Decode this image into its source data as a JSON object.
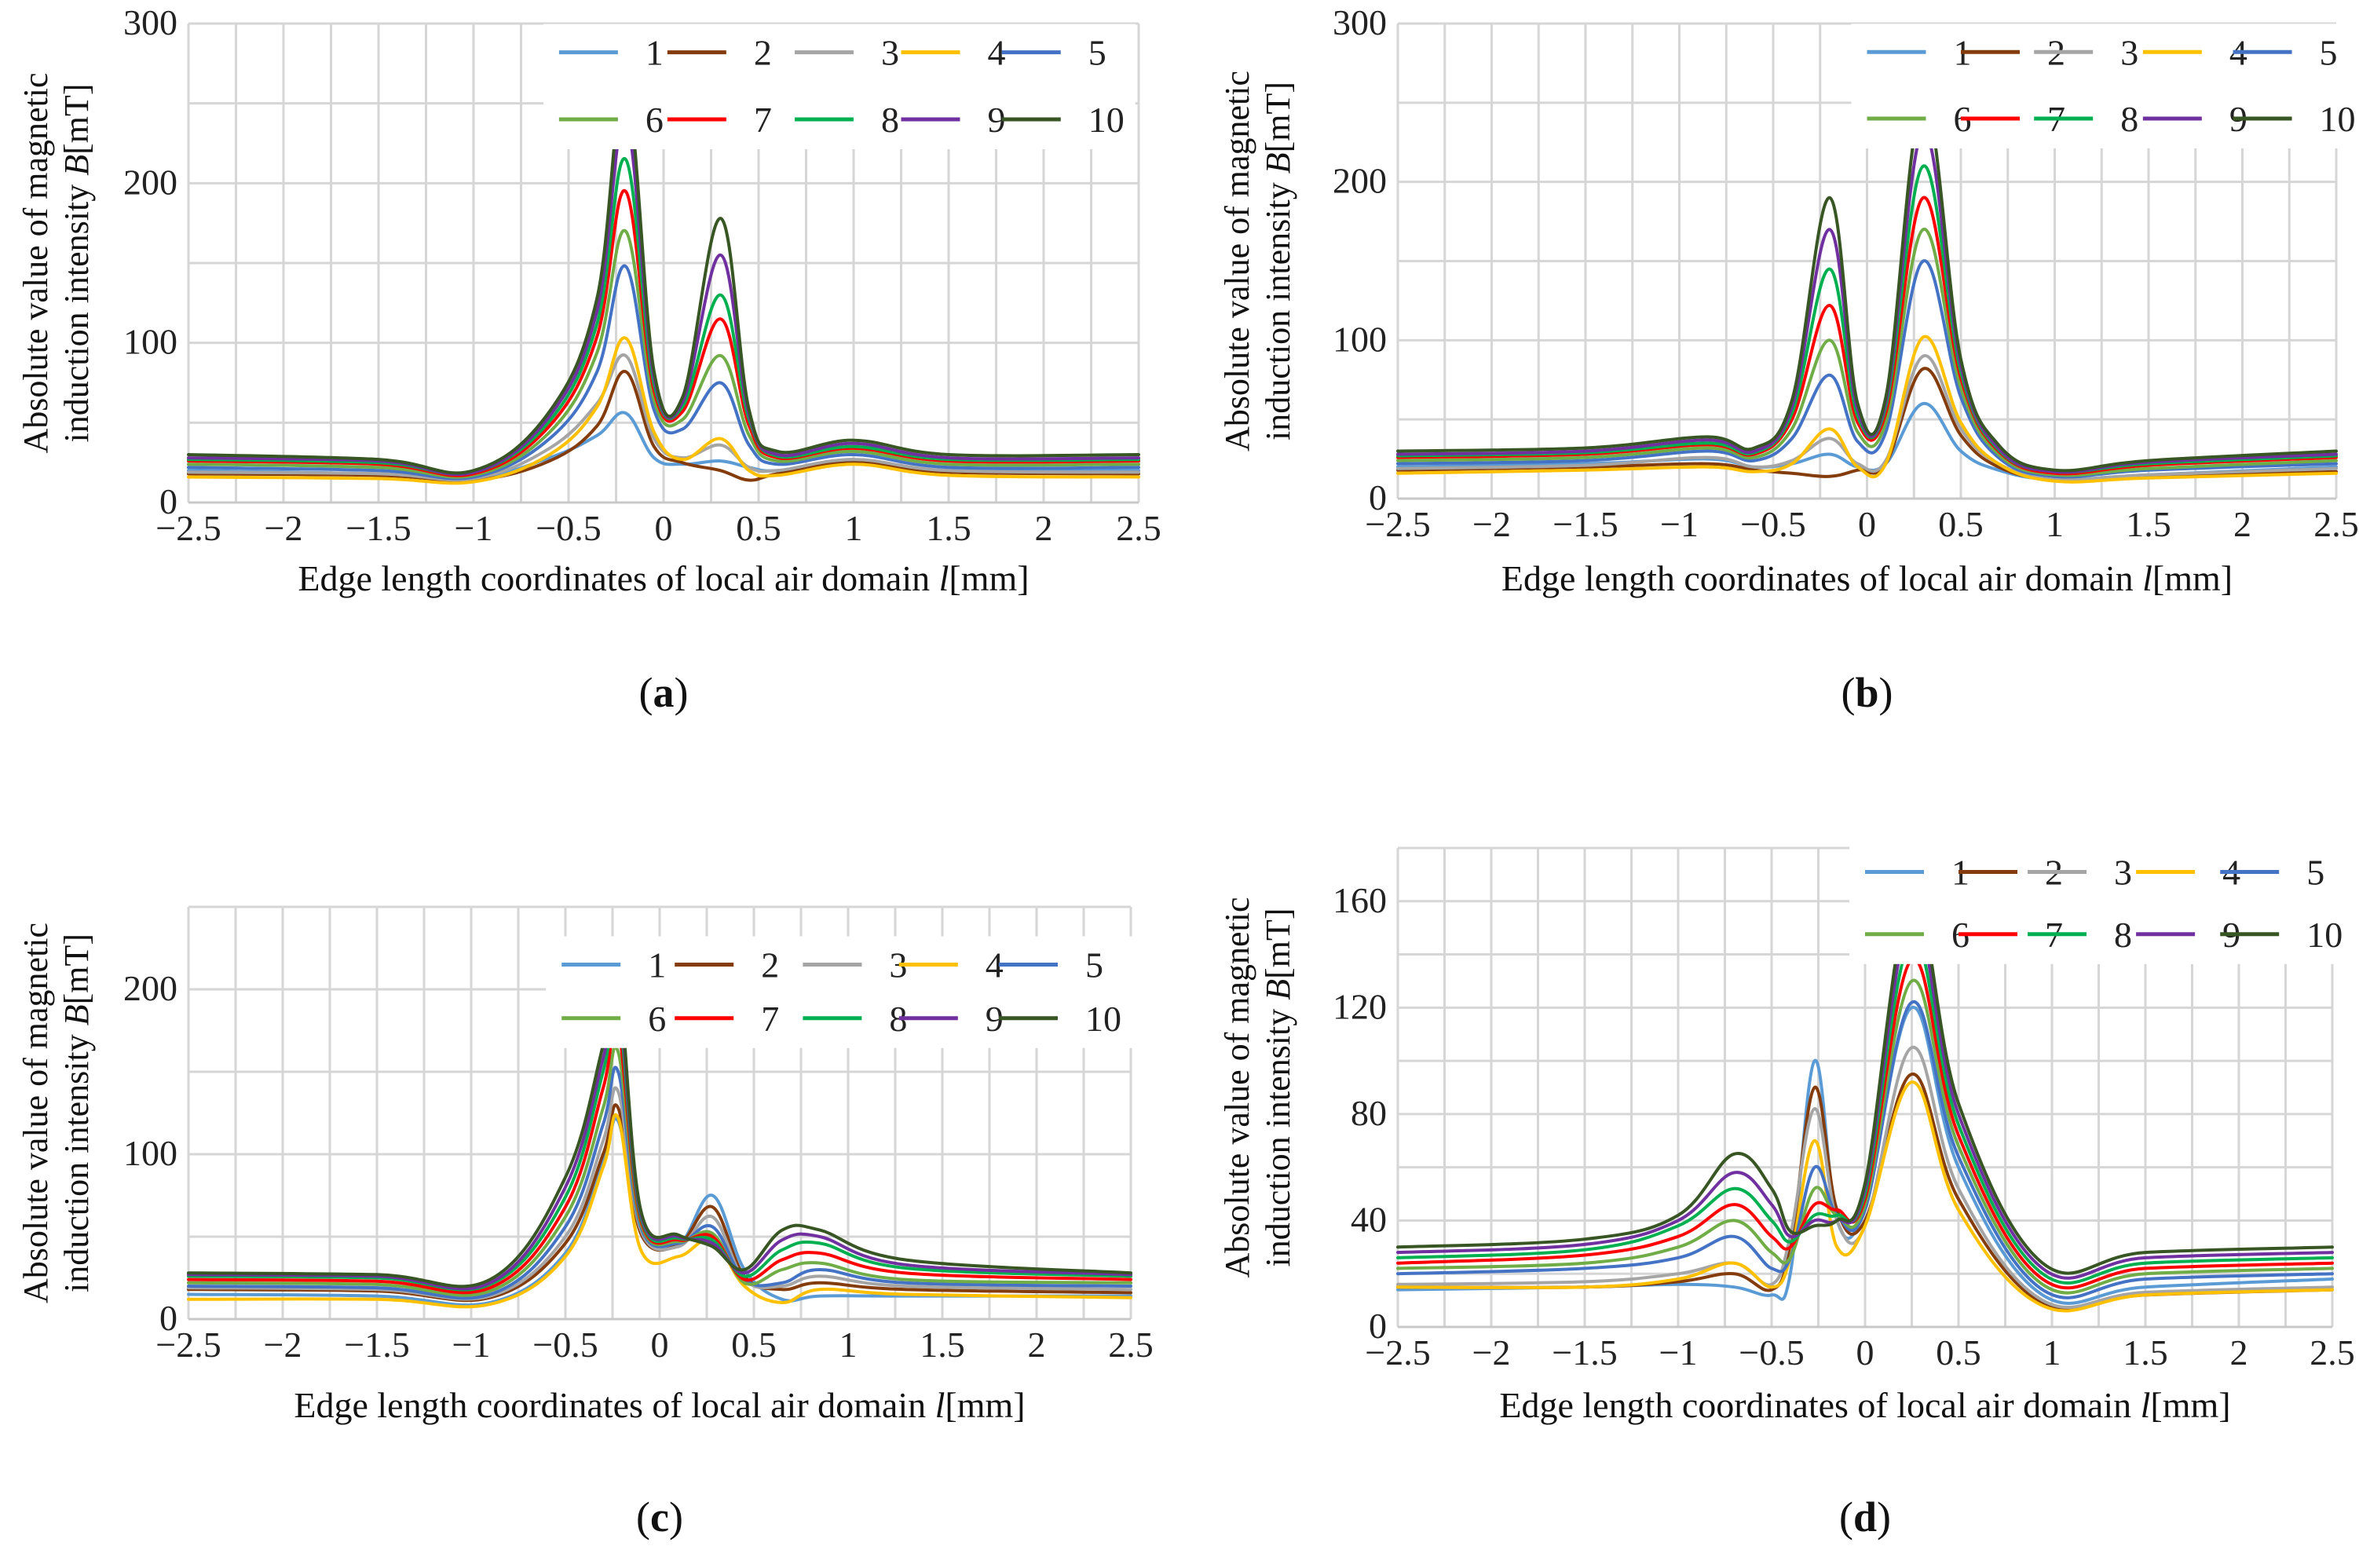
{
  "colors": {
    "1": "#5b9bd5",
    "2": "#843c0c",
    "3": "#a5a5a5",
    "4": "#ffc000",
    "5": "#4472c4",
    "6": "#70ad47",
    "7": "#ff0000",
    "8": "#00b050",
    "9": "#7030a0",
    "10": "#375623"
  },
  "chart_data": [
    {
      "panel": "a",
      "type": "line",
      "xlabel": "Edge length coordinates of local air domain l[mm]",
      "ylabel_line1": "Absolute value of magnetic",
      "ylabel_line2": "induction intensity B[mT]",
      "xlim": [
        -2.5,
        2.5
      ],
      "ylim": [
        0,
        300
      ],
      "xticks": [
        -2.5,
        -2,
        -1.5,
        -1,
        -0.5,
        0,
        0.5,
        1,
        1.5,
        2,
        2.5
      ],
      "yticks": [
        0,
        100,
        200,
        300
      ],
      "legend": [
        "1",
        "2",
        "3",
        "4",
        "5",
        "6",
        "7",
        "8",
        "9",
        "10"
      ],
      "x": [
        -2.5,
        -1.5,
        -1.0,
        -0.6,
        -0.35,
        -0.2,
        -0.05,
        0.1,
        0.3,
        0.45,
        0.6,
        1.0,
        1.5,
        2.5
      ],
      "series": [
        {
          "name": "1",
          "values": [
            20,
            18,
            15,
            28,
            42,
            56,
            28,
            24,
            26,
            22,
            20,
            26,
            20,
            20
          ]
        },
        {
          "name": "2",
          "values": [
            18,
            17,
            14,
            26,
            48,
            82,
            35,
            25,
            20,
            14,
            18,
            25,
            19,
            18
          ]
        },
        {
          "name": "3",
          "values": [
            19,
            18,
            15,
            34,
            62,
            92,
            40,
            28,
            36,
            22,
            20,
            27,
            20,
            19
          ]
        },
        {
          "name": "4",
          "values": [
            16,
            15,
            13,
            30,
            60,
            103,
            44,
            27,
            40,
            20,
            17,
            24,
            17,
            16
          ]
        },
        {
          "name": "5",
          "values": [
            22,
            20,
            16,
            40,
            82,
            148,
            58,
            46,
            75,
            36,
            24,
            30,
            22,
            22
          ]
        },
        {
          "name": "6",
          "values": [
            24,
            22,
            17,
            44,
            94,
            170,
            64,
            52,
            92,
            42,
            26,
            32,
            24,
            24
          ]
        },
        {
          "name": "7",
          "values": [
            26,
            24,
            18,
            48,
            104,
            195,
            70,
            57,
            115,
            48,
            28,
            34,
            26,
            26
          ]
        },
        {
          "name": "8",
          "values": [
            27,
            25,
            19,
            51,
            112,
            215,
            74,
            60,
            130,
            52,
            29,
            35,
            27,
            27
          ]
        },
        {
          "name": "9",
          "values": [
            28,
            26,
            19,
            54,
            120,
            240,
            78,
            63,
            155,
            55,
            30,
            37,
            28,
            28
          ]
        },
        {
          "name": "10",
          "values": [
            30,
            27,
            20,
            57,
            128,
            262,
            82,
            66,
            178,
            58,
            32,
            39,
            30,
            30
          ]
        }
      ]
    },
    {
      "panel": "b",
      "type": "line",
      "xlabel": "Edge length coordinates of local air domain l[mm]",
      "ylabel_line1": "Absolute value of magnetic",
      "ylabel_line2": "induction intensity B[mT]",
      "xlim": [
        -2.5,
        2.5
      ],
      "ylim": [
        0,
        300
      ],
      "xticks": [
        -2.5,
        -2,
        -1.5,
        -1,
        -0.5,
        0,
        0.5,
        1,
        1.5,
        2,
        2.5
      ],
      "yticks": [
        0,
        100,
        200,
        300
      ],
      "legend": [
        "1",
        "2",
        "3",
        "4",
        "5",
        "6",
        "7",
        "8",
        "9",
        "10"
      ],
      "x": [
        -2.5,
        -1.5,
        -0.85,
        -0.6,
        -0.4,
        -0.2,
        -0.05,
        0.1,
        0.3,
        0.5,
        0.7,
        1.0,
        1.5,
        2.5
      ],
      "series": [
        {
          "name": "1",
          "values": [
            20,
            22,
            25,
            20,
            22,
            28,
            20,
            22,
            60,
            30,
            18,
            12,
            15,
            20
          ]
        },
        {
          "name": "2",
          "values": [
            18,
            20,
            22,
            18,
            16,
            14,
            18,
            22,
            82,
            40,
            20,
            12,
            14,
            17
          ]
        },
        {
          "name": "3",
          "values": [
            19,
            21,
            26,
            20,
            24,
            38,
            22,
            24,
            90,
            44,
            22,
            12,
            15,
            19
          ]
        },
        {
          "name": "4",
          "values": [
            16,
            18,
            20,
            17,
            22,
            44,
            20,
            22,
            102,
            48,
            22,
            11,
            13,
            16
          ]
        },
        {
          "name": "5",
          "values": [
            22,
            24,
            30,
            24,
            38,
            78,
            36,
            42,
            150,
            64,
            26,
            14,
            18,
            22
          ]
        },
        {
          "name": "6",
          "values": [
            24,
            26,
            32,
            26,
            44,
            100,
            42,
            48,
            170,
            70,
            28,
            15,
            19,
            24
          ]
        },
        {
          "name": "7",
          "values": [
            26,
            28,
            34,
            28,
            50,
            122,
            48,
            54,
            190,
            76,
            30,
            16,
            21,
            26
          ]
        },
        {
          "name": "8",
          "values": [
            27,
            29,
            35,
            29,
            54,
            145,
            52,
            58,
            210,
            80,
            31,
            17,
            22,
            27
          ]
        },
        {
          "name": "9",
          "values": [
            28,
            30,
            37,
            30,
            58,
            170,
            56,
            61,
            232,
            84,
            32,
            17,
            23,
            28
          ]
        },
        {
          "name": "10",
          "values": [
            30,
            32,
            39,
            32,
            62,
            190,
            60,
            64,
            252,
            88,
            34,
            18,
            24,
            30
          ]
        }
      ]
    },
    {
      "panel": "c",
      "type": "line",
      "xlabel": "Edge length coordinates of local air domain l[mm]",
      "ylabel_line1": "Absolute value of magnetic",
      "ylabel_line2": "induction intensity B[mT]",
      "xlim": [
        -2.5,
        2.5
      ],
      "ylim": [
        0,
        250
      ],
      "xticks": [
        -2.5,
        -2,
        -1.5,
        -1,
        -0.5,
        0,
        0.5,
        1,
        1.5,
        2,
        2.5
      ],
      "yticks": [
        0,
        100,
        200
      ],
      "legend": [
        "1",
        "2",
        "3",
        "4",
        "5",
        "6",
        "7",
        "8",
        "9",
        "10"
      ],
      "x": [
        -2.5,
        -1.5,
        -0.9,
        -0.5,
        -0.3,
        -0.22,
        -0.1,
        0.1,
        0.28,
        0.45,
        0.65,
        0.85,
        1.3,
        2.5
      ],
      "series": [
        {
          "name": "1",
          "values": [
            15,
            14,
            10,
            40,
            95,
            120,
            55,
            45,
            75,
            30,
            12,
            14,
            14,
            14
          ]
        },
        {
          "name": "2",
          "values": [
            18,
            17,
            13,
            46,
            100,
            128,
            52,
            45,
            68,
            26,
            18,
            22,
            18,
            16
          ]
        },
        {
          "name": "3",
          "values": [
            19,
            18,
            14,
            50,
            108,
            138,
            54,
            44,
            62,
            24,
            20,
            26,
            20,
            18
          ]
        },
        {
          "name": "4",
          "values": [
            12,
            12,
            9,
            38,
            92,
            122,
            42,
            38,
            48,
            20,
            10,
            18,
            15,
            13
          ]
        },
        {
          "name": "5",
          "values": [
            20,
            19,
            15,
            56,
            118,
            150,
            56,
            46,
            56,
            24,
            22,
            30,
            22,
            20
          ]
        },
        {
          "name": "6",
          "values": [
            22,
            21,
            17,
            62,
            128,
            162,
            58,
            47,
            52,
            22,
            30,
            34,
            24,
            22
          ]
        },
        {
          "name": "7",
          "values": [
            24,
            23,
            19,
            68,
            140,
            176,
            60,
            48,
            50,
            24,
            36,
            40,
            28,
            24
          ]
        },
        {
          "name": "8",
          "values": [
            26,
            25,
            21,
            74,
            150,
            188,
            62,
            49,
            48,
            26,
            42,
            46,
            31,
            26
          ]
        },
        {
          "name": "9",
          "values": [
            27,
            26,
            22,
            80,
            158,
            197,
            64,
            50,
            46,
            28,
            48,
            50,
            33,
            27
          ]
        },
        {
          "name": "10",
          "values": [
            28,
            27,
            24,
            86,
            166,
            206,
            66,
            51,
            44,
            30,
            54,
            54,
            36,
            28
          ]
        }
      ]
    },
    {
      "panel": "d",
      "type": "line",
      "xlabel": "Edge length coordinates of local air domain l[mm]",
      "ylabel_line1": "Absolute value of magnetic",
      "ylabel_line2": "induction intensity B[mT]",
      "xlim": [
        -2.5,
        2.5
      ],
      "ylim": [
        0,
        180
      ],
      "xticks": [
        -2.5,
        -2,
        -1.5,
        -1,
        -0.5,
        0,
        0.5,
        1,
        1.5,
        2,
        2.5
      ],
      "yticks": [
        0,
        40,
        80,
        120,
        160
      ],
      "legend": [
        "1",
        "2",
        "3",
        "4",
        "5",
        "6",
        "7",
        "8",
        "9",
        "10"
      ],
      "x": [
        -2.5,
        -1.5,
        -1.0,
        -0.7,
        -0.5,
        -0.4,
        -0.27,
        -0.15,
        0.0,
        0.25,
        0.5,
        0.95,
        1.5,
        2.5
      ],
      "series": [
        {
          "name": "1",
          "values": [
            14,
            15,
            16,
            15,
            12,
            20,
            100,
            40,
            45,
            120,
            60,
            12,
            15,
            18
          ]
        },
        {
          "name": "2",
          "values": [
            15,
            15,
            17,
            20,
            14,
            30,
            90,
            44,
            40,
            95,
            48,
            9,
            12,
            14
          ]
        },
        {
          "name": "3",
          "values": [
            16,
            17,
            20,
            24,
            16,
            34,
            82,
            40,
            38,
            105,
            52,
            10,
            13,
            15
          ]
        },
        {
          "name": "4",
          "values": [
            15,
            15,
            18,
            24,
            15,
            26,
            70,
            30,
            38,
            92,
            44,
            8,
            12,
            14
          ]
        },
        {
          "name": "5",
          "values": [
            20,
            22,
            26,
            34,
            22,
            26,
            60,
            42,
            44,
            122,
            64,
            14,
            18,
            20
          ]
        },
        {
          "name": "6",
          "values": [
            22,
            24,
            30,
            40,
            28,
            26,
            52,
            42,
            46,
            130,
            68,
            16,
            20,
            22
          ]
        },
        {
          "name": "7",
          "values": [
            24,
            27,
            34,
            46,
            34,
            30,
            46,
            44,
            48,
            138,
            72,
            18,
            22,
            24
          ]
        },
        {
          "name": "8",
          "values": [
            26,
            29,
            38,
            52,
            40,
            32,
            42,
            42,
            50,
            146,
            76,
            20,
            24,
            26
          ]
        },
        {
          "name": "9",
          "values": [
            28,
            31,
            40,
            58,
            46,
            34,
            40,
            40,
            52,
            154,
            80,
            22,
            26,
            28
          ]
        },
        {
          "name": "10",
          "values": [
            30,
            33,
            42,
            65,
            52,
            36,
            38,
            40,
            54,
            162,
            84,
            24,
            28,
            30
          ]
        }
      ]
    }
  ]
}
